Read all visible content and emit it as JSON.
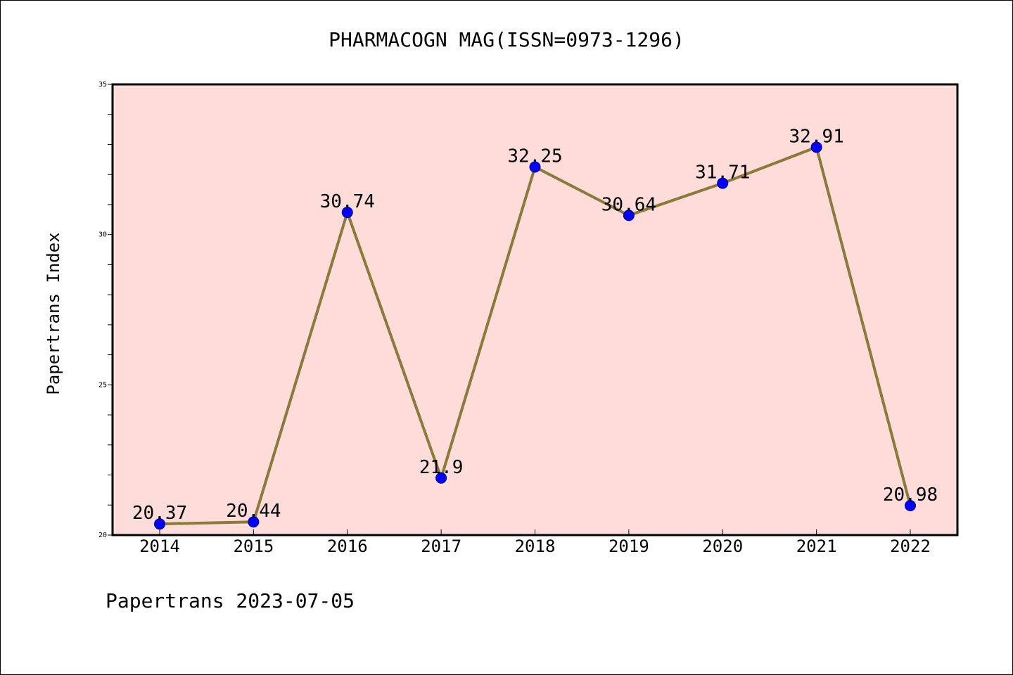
{
  "chart_data": {
    "type": "line",
    "title": "PHARMACOGN MAG(ISSN=0973-1296)",
    "xlabel": "",
    "ylabel": "Papertrans Index",
    "categories": [
      "2014",
      "2015",
      "2016",
      "2017",
      "2018",
      "2019",
      "2020",
      "2021",
      "2022"
    ],
    "series": [
      {
        "values": [
          20.37,
          20.44,
          30.74,
          21.9,
          32.25,
          30.64,
          31.71,
          32.91,
          20.98
        ],
        "line_color": "#8b7a3a",
        "marker_color": "#0000ff"
      }
    ],
    "data_labels": [
      "20.37",
      "20.44",
      "30.74",
      "21.9",
      "32.25",
      "30.64",
      "31.71",
      "32.91",
      "20.98"
    ],
    "ylim": [
      20,
      35
    ],
    "yticks": [
      "20",
      "25",
      "30",
      "35"
    ],
    "grid": false,
    "legend": "none",
    "plot_background": "#fddcda"
  },
  "footer": {
    "text": "Papertrans 2023-07-05"
  }
}
